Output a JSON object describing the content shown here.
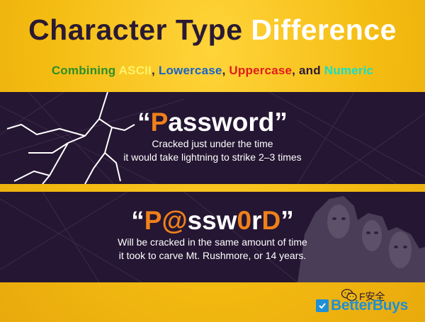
{
  "header": {
    "title_part1": "Character Type ",
    "title_part2": "Difference",
    "subtitle": {
      "combining": "Combining ",
      "ascii": "ASCII",
      "comma1": ", ",
      "lowercase": "Lowercase",
      "comma2": ", ",
      "uppercase": "Uppercase",
      "and": ", and ",
      "numeric": "Numeric"
    }
  },
  "panel1": {
    "open_quote": "“",
    "first_letter": "P",
    "rest": "assword",
    "close_quote": "”",
    "line1": "Cracked just under the time",
    "line2": "it would take lightning to strike 2–3 times"
  },
  "panel2": {
    "open_quote": "“",
    "p": "P",
    "at": "@",
    "ssw": "ssw",
    "zero": "0",
    "r": "r",
    "d": "D",
    "close_quote": "”",
    "line1": "Will be cracked in the same amount of time",
    "line2": "it took to carve Mt. Rushmore, or 14 years."
  },
  "footer": {
    "wechat_text": "F安全",
    "brand": "BetterBuys",
    "icons": [
      "wechat-icon",
      "checkmark-icon"
    ]
  },
  "colors": {
    "background": "#f4bc12",
    "band": "#251633",
    "accent_orange": "#f0801a",
    "brand_blue": "#1f8fd6"
  }
}
